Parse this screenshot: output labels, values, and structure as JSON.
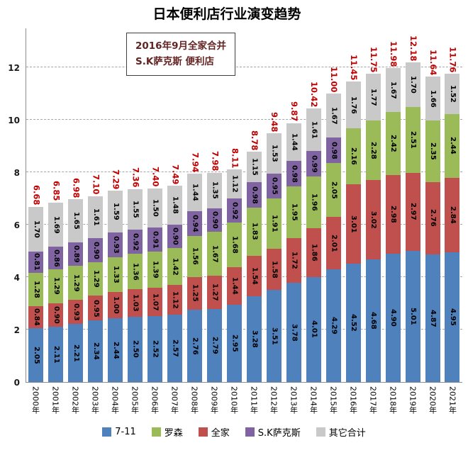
{
  "title": "日本便利店行业演变趋势",
  "annotation": {
    "line1": "2016年9月全家合并",
    "line2": "S.K萨克斯 便利店"
  },
  "legend": [
    {
      "label": "7-11",
      "color": "#4F81BD"
    },
    {
      "label": "罗森",
      "color": "#9BBB59"
    },
    {
      "label": "全家",
      "color": "#C0504D"
    },
    {
      "label": "S.K萨克斯",
      "color": "#8064A2"
    },
    {
      "label": "其它合计",
      "color": "#C9C9C9"
    }
  ],
  "colors": {
    "total_label": "#C00000",
    "segment_label": "#000000",
    "gridline": "#A6A6A6"
  },
  "chart_data": {
    "type": "bar",
    "stacked": true,
    "title": "日本便利店行业演变趋势",
    "xlabel": "",
    "ylabel": "",
    "ylim": [
      0,
      12
    ],
    "yticks": [
      0,
      2,
      4,
      6,
      8,
      10,
      12
    ],
    "grid": "dashed-horizontal",
    "legend_position": "bottom",
    "categories": [
      "2000年",
      "2001年",
      "2002年",
      "2003年",
      "2004年",
      "2005年",
      "2006年",
      "2007年",
      "2008年",
      "2009年",
      "2010年",
      "2011年",
      "2012年",
      "2013年",
      "2014年",
      "2015年",
      "2016年",
      "2017年",
      "2018年",
      "2019年",
      "2020年",
      "2021年"
    ],
    "series": [
      {
        "name": "7-11",
        "color": "#4F81BD",
        "values": [
          2.05,
          2.11,
          2.21,
          2.34,
          2.44,
          2.5,
          2.52,
          2.57,
          2.76,
          2.79,
          2.95,
          3.28,
          3.51,
          3.78,
          4.01,
          4.29,
          4.52,
          4.68,
          4.9,
          5.01,
          4.87,
          4.95
        ]
      },
      {
        "name": "全家",
        "color": "#C0504D",
        "values": [
          0.84,
          0.9,
          0.93,
          0.95,
          1.0,
          1.03,
          1.07,
          1.12,
          1.25,
          1.27,
          1.44,
          1.54,
          1.58,
          1.72,
          1.86,
          2.01,
          3.01,
          3.02,
          2.98,
          2.97,
          2.76,
          2.84
        ]
      },
      {
        "name": "罗森",
        "color": "#9BBB59",
        "values": [
          1.28,
          1.29,
          1.29,
          1.29,
          1.33,
          1.36,
          1.39,
          1.42,
          1.56,
          1.67,
          1.68,
          1.83,
          1.91,
          1.95,
          1.96,
          2.05,
          2.16,
          2.28,
          2.42,
          2.51,
          2.35,
          2.44
        ]
      },
      {
        "name": "S.K萨克斯",
        "color": "#8064A2",
        "values": [
          0.81,
          0.86,
          0.89,
          0.9,
          0.93,
          0.92,
          0.91,
          0.9,
          0.94,
          0.9,
          0.92,
          0.98,
          0.95,
          0.98,
          0.99,
          0.98,
          0,
          0,
          0,
          0,
          0,
          0
        ]
      },
      {
        "name": "其它合计",
        "color": "#C9C9C9",
        "values": [
          1.7,
          1.69,
          1.65,
          1.61,
          1.59,
          1.55,
          1.5,
          1.48,
          1.44,
          1.35,
          1.12,
          1.15,
          1.53,
          1.44,
          1.61,
          1.67,
          1.76,
          1.77,
          1.67,
          1.7,
          1.66,
          1.52
        ]
      }
    ],
    "totals": [
      6.68,
      6.85,
      6.98,
      7.1,
      7.29,
      7.36,
      7.4,
      7.49,
      7.94,
      7.98,
      8.11,
      8.78,
      9.48,
      9.87,
      10.42,
      11.0,
      11.45,
      11.75,
      11.98,
      12.18,
      11.64,
      11.76
    ]
  }
}
